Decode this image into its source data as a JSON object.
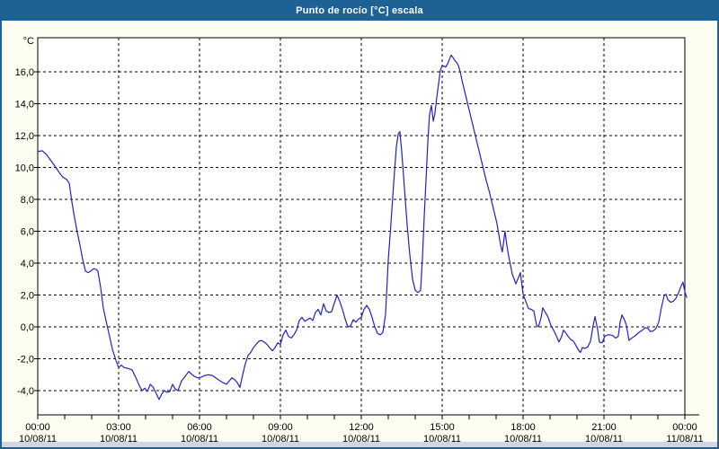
{
  "window": {
    "title": "Punto de rocío [°C] escala"
  },
  "colors": {
    "titlebar": "#1e6295",
    "frame": "#1e6295",
    "line": "#2122c4",
    "plot_bg": "#ffffff",
    "grid": "#000000",
    "bottom_strip": "#cfd5e3"
  },
  "chart_data": {
    "type": "line",
    "title": "Punto de rocío [°C] escala",
    "ylabel": "°C",
    "series_name": "Punto de rocío",
    "line_color": "#2122c4",
    "grid": "dashed",
    "legend_position": "none",
    "xlim_hours": [
      0,
      24.4
    ],
    "ylim": [
      -5.5,
      18.1
    ],
    "yticks": {
      "values": [
        16,
        14,
        12,
        10,
        8,
        6,
        4,
        2,
        0,
        -2,
        -4
      ],
      "labels": [
        "16,0",
        "14,0",
        "12,0",
        "10,0",
        "8,0",
        "6,0",
        "4,0",
        "2,0",
        "0,0",
        "-2,0",
        "-4,0"
      ]
    },
    "xticks": {
      "hours": [
        0,
        3,
        6,
        9,
        12,
        15,
        18,
        21,
        24
      ],
      "time_labels": [
        "00:00",
        "03:00",
        "06:00",
        "09:00",
        "12:00",
        "15:00",
        "18:00",
        "21:00",
        "00:00"
      ],
      "date_labels": [
        "10/08/11",
        "10/08/11",
        "10/08/11",
        "10/08/11",
        "10/08/11",
        "10/08/11",
        "10/08/11",
        "10/08/11",
        "11/08/11"
      ]
    },
    "points": [
      [
        0,
        11
      ],
      [
        0.17,
        11.05
      ],
      [
        0.33,
        10.8
      ],
      [
        0.5,
        10.4
      ],
      [
        0.67,
        10
      ],
      [
        0.83,
        9.6
      ],
      [
        0.93,
        9.4
      ],
      [
        1.07,
        9.25
      ],
      [
        1.17,
        9
      ],
      [
        1.27,
        7.8
      ],
      [
        1.37,
        6.8
      ],
      [
        1.47,
        5.9
      ],
      [
        1.57,
        5.1
      ],
      [
        1.67,
        4.2
      ],
      [
        1.77,
        3.5
      ],
      [
        1.87,
        3.4
      ],
      [
        1.97,
        3.5
      ],
      [
        2.07,
        3.65
      ],
      [
        2.17,
        3.6
      ],
      [
        2.23,
        3.5
      ],
      [
        2.33,
        2.5
      ],
      [
        2.43,
        1.2
      ],
      [
        2.57,
        0.1
      ],
      [
        2.67,
        -0.65
      ],
      [
        2.77,
        -1.4
      ],
      [
        2.9,
        -2.1
      ],
      [
        3,
        -2.55
      ],
      [
        3.1,
        -2.4
      ],
      [
        3.2,
        -2.55
      ],
      [
        3.33,
        -2.6
      ],
      [
        3.5,
        -2.7
      ],
      [
        3.67,
        -3.3
      ],
      [
        3.77,
        -3.7
      ],
      [
        3.87,
        -4
      ],
      [
        3.97,
        -3.85
      ],
      [
        4.07,
        -4.05
      ],
      [
        4.17,
        -3.6
      ],
      [
        4.27,
        -3.75
      ],
      [
        4.37,
        -4.1
      ],
      [
        4.5,
        -4.55
      ],
      [
        4.6,
        -4.2
      ],
      [
        4.7,
        -4
      ],
      [
        4.8,
        -4.1
      ],
      [
        4.9,
        -4.05
      ],
      [
        5,
        -3.6
      ],
      [
        5.1,
        -3.9
      ],
      [
        5.2,
        -4
      ],
      [
        5.33,
        -3.4
      ],
      [
        5.47,
        -3.1
      ],
      [
        5.6,
        -2.8
      ],
      [
        5.7,
        -2.95
      ],
      [
        5.8,
        -3.1
      ],
      [
        5.93,
        -3.2
      ],
      [
        6.07,
        -3.15
      ],
      [
        6.2,
        -3.05
      ],
      [
        6.33,
        -3
      ],
      [
        6.47,
        -3.05
      ],
      [
        6.6,
        -3.2
      ],
      [
        6.73,
        -3.35
      ],
      [
        6.87,
        -3.5
      ],
      [
        7,
        -3.6
      ],
      [
        7.1,
        -3.4
      ],
      [
        7.2,
        -3.2
      ],
      [
        7.3,
        -3.3
      ],
      [
        7.4,
        -3.5
      ],
      [
        7.5,
        -3.8
      ],
      [
        7.6,
        -3
      ],
      [
        7.7,
        -2.3
      ],
      [
        7.8,
        -1.8
      ],
      [
        7.9,
        -1.6
      ],
      [
        8,
        -1.3
      ],
      [
        8.1,
        -1.1
      ],
      [
        8.2,
        -0.9
      ],
      [
        8.3,
        -0.85
      ],
      [
        8.4,
        -0.95
      ],
      [
        8.5,
        -1.1
      ],
      [
        8.6,
        -1.3
      ],
      [
        8.7,
        -1.5
      ],
      [
        8.8,
        -1.3
      ],
      [
        8.9,
        -1
      ],
      [
        9,
        -1.1
      ],
      [
        9.1,
        -0.5
      ],
      [
        9.2,
        -0.2
      ],
      [
        9.3,
        -0.6
      ],
      [
        9.4,
        -0.7
      ],
      [
        9.5,
        -0.5
      ],
      [
        9.6,
        -0.2
      ],
      [
        9.7,
        0.4
      ],
      [
        9.8,
        0.6
      ],
      [
        9.9,
        0.35
      ],
      [
        10,
        0.45
      ],
      [
        10.1,
        0.55
      ],
      [
        10.2,
        0.4
      ],
      [
        10.3,
        0.9
      ],
      [
        10.4,
        1.1
      ],
      [
        10.5,
        0.75
      ],
      [
        10.6,
        1.45
      ],
      [
        10.7,
        1
      ],
      [
        10.8,
        0.9
      ],
      [
        10.9,
        0.95
      ],
      [
        11,
        1.5
      ],
      [
        11.1,
        2
      ],
      [
        11.2,
        1.6
      ],
      [
        11.3,
        1.1
      ],
      [
        11.4,
        0.5
      ],
      [
        11.5,
        0
      ],
      [
        11.6,
        0.05
      ],
      [
        11.7,
        0.45
      ],
      [
        11.8,
        0.3
      ],
      [
        11.9,
        0.5
      ],
      [
        12,
        0.6
      ],
      [
        12.1,
        1.1
      ],
      [
        12.2,
        1.35
      ],
      [
        12.3,
        1.1
      ],
      [
        12.4,
        0.6
      ],
      [
        12.5,
        0
      ],
      [
        12.6,
        -0.4
      ],
      [
        12.7,
        -0.5
      ],
      [
        12.8,
        -0.35
      ],
      [
        12.9,
        0.8
      ],
      [
        13,
        4.2
      ],
      [
        13.1,
        6.5
      ],
      [
        13.2,
        9
      ],
      [
        13.3,
        11.3
      ],
      [
        13.37,
        12.1
      ],
      [
        13.43,
        12.25
      ],
      [
        13.5,
        11
      ],
      [
        13.6,
        8.7
      ],
      [
        13.7,
        6.4
      ],
      [
        13.8,
        4.5
      ],
      [
        13.9,
        3
      ],
      [
        14,
        2.3
      ],
      [
        14.1,
        2.15
      ],
      [
        14.2,
        2.3
      ],
      [
        14.27,
        4.4
      ],
      [
        14.33,
        6.8
      ],
      [
        14.4,
        9.2
      ],
      [
        14.47,
        11.7
      ],
      [
        14.53,
        13.3
      ],
      [
        14.6,
        13.9
      ],
      [
        14.67,
        12.9
      ],
      [
        14.73,
        13.4
      ],
      [
        14.8,
        14.4
      ],
      [
        14.87,
        15.3
      ],
      [
        14.93,
        16.1
      ],
      [
        15,
        16.4
      ],
      [
        15.07,
        16.35
      ],
      [
        15.13,
        16.3
      ],
      [
        15.2,
        16.5
      ],
      [
        15.27,
        16.8
      ],
      [
        15.33,
        17.05
      ],
      [
        15.4,
        16.9
      ],
      [
        15.47,
        16.7
      ],
      [
        15.53,
        16.6
      ],
      [
        15.6,
        16.4
      ],
      [
        15.67,
        16
      ],
      [
        15.73,
        15.5
      ],
      [
        15.83,
        14.8
      ],
      [
        15.93,
        14.1
      ],
      [
        16.03,
        13.4
      ],
      [
        16.13,
        12.7
      ],
      [
        16.23,
        12
      ],
      [
        16.33,
        11.3
      ],
      [
        16.43,
        10.6
      ],
      [
        16.53,
        9.9
      ],
      [
        16.63,
        9.2
      ],
      [
        16.73,
        8.6
      ],
      [
        16.83,
        7.9
      ],
      [
        16.93,
        7.2
      ],
      [
        17.03,
        6.5
      ],
      [
        17.1,
        5.8
      ],
      [
        17.17,
        5.1
      ],
      [
        17.23,
        4.7
      ],
      [
        17.33,
        6
      ],
      [
        17.4,
        5.1
      ],
      [
        17.47,
        4.4
      ],
      [
        17.53,
        3.9
      ],
      [
        17.6,
        3.3
      ],
      [
        17.67,
        3
      ],
      [
        17.73,
        2.7
      ],
      [
        17.83,
        3.1
      ],
      [
        17.9,
        3.4
      ],
      [
        18,
        2.05
      ],
      [
        18.1,
        1.6
      ],
      [
        18.2,
        1.15
      ],
      [
        18.3,
        1.1
      ],
      [
        18.4,
        1
      ],
      [
        18.5,
        0.1
      ],
      [
        18.57,
        0
      ],
      [
        18.67,
        0.6
      ],
      [
        18.73,
        1.2
      ],
      [
        18.83,
        0.9
      ],
      [
        18.93,
        0.6
      ],
      [
        19.03,
        0.1
      ],
      [
        19.13,
        -0.2
      ],
      [
        19.23,
        -0.55
      ],
      [
        19.33,
        -0.95
      ],
      [
        19.43,
        -0.6
      ],
      [
        19.5,
        -0.2
      ],
      [
        19.57,
        -0.35
      ],
      [
        19.67,
        -0.6
      ],
      [
        19.77,
        -0.8
      ],
      [
        19.87,
        -0.9
      ],
      [
        19.97,
        -1.2
      ],
      [
        20.07,
        -1.5
      ],
      [
        20.13,
        -1.6
      ],
      [
        20.2,
        -1.3
      ],
      [
        20.3,
        -1.35
      ],
      [
        20.4,
        -1.25
      ],
      [
        20.5,
        -0.9
      ],
      [
        20.6,
        0.1
      ],
      [
        20.67,
        0.65
      ],
      [
        20.77,
        -0.2
      ],
      [
        20.83,
        -0.95
      ],
      [
        20.93,
        -1
      ],
      [
        21.03,
        -0.6
      ],
      [
        21.13,
        -0.5
      ],
      [
        21.23,
        -0.5
      ],
      [
        21.33,
        -0.55
      ],
      [
        21.43,
        -0.7
      ],
      [
        21.53,
        -0.6
      ],
      [
        21.6,
        0.3
      ],
      [
        21.67,
        0.75
      ],
      [
        21.77,
        0.4
      ],
      [
        21.83,
        0.1
      ],
      [
        21.93,
        -0.85
      ],
      [
        22.03,
        -0.7
      ],
      [
        22.13,
        -0.6
      ],
      [
        22.23,
        -0.45
      ],
      [
        22.33,
        -0.3
      ],
      [
        22.43,
        -0.2
      ],
      [
        22.53,
        -0.05
      ],
      [
        22.63,
        -0.1
      ],
      [
        22.73,
        -0.3
      ],
      [
        22.83,
        -0.25
      ],
      [
        22.93,
        -0.1
      ],
      [
        23.03,
        0.3
      ],
      [
        23.13,
        1.2
      ],
      [
        23.23,
        1.95
      ],
      [
        23.3,
        2.05
      ],
      [
        23.37,
        1.7
      ],
      [
        23.47,
        1.55
      ],
      [
        23.57,
        1.6
      ],
      [
        23.67,
        1.8
      ],
      [
        23.77,
        2.15
      ],
      [
        23.87,
        2.6
      ],
      [
        23.93,
        2.8
      ],
      [
        24,
        2.2
      ],
      [
        24.07,
        1.85
      ]
    ]
  }
}
